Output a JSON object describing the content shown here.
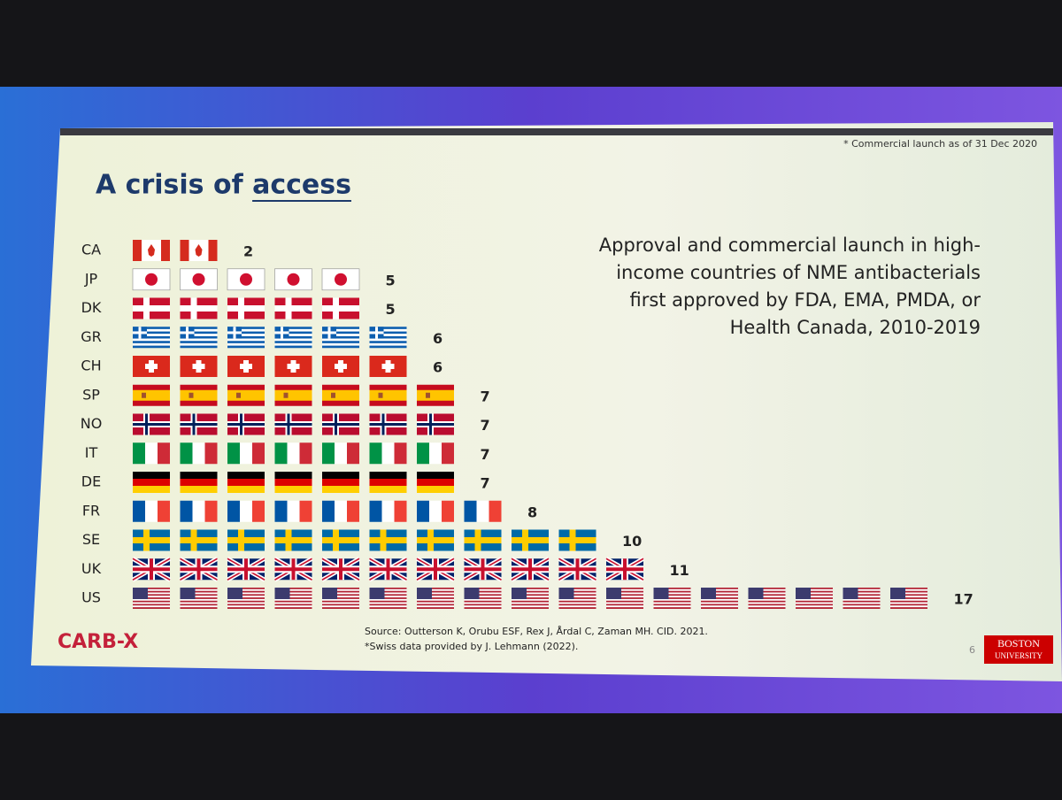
{
  "note": "* Commercial launch as of 31 Dec 2020",
  "chart_data": {
    "type": "pictograph",
    "title": "A crisis of access",
    "subtitle_lines": [
      "Approval and commercial launch in high-",
      "income countries of NME antibacterials",
      "first approved by FDA, EMA, PMDA, or",
      "Health Canada, 2010-2019"
    ],
    "categories": [
      "CA",
      "JP",
      "DK",
      "GR",
      "CH",
      "SP",
      "NO",
      "IT",
      "DE",
      "FR",
      "SE",
      "UK",
      "US"
    ],
    "values": [
      2,
      5,
      5,
      6,
      6,
      7,
      7,
      7,
      7,
      8,
      10,
      11,
      17
    ]
  },
  "source_lines": [
    "Source: Outterson K, Orubu ESF, Rex J, Årdal  C, Zaman MH. CID. 2021.",
    "*Swiss data provided by J. Lehmann (2022)."
  ],
  "logo": {
    "left": "CARB-X",
    "right_lines": [
      "BOSTON",
      "UNIVERSITY"
    ]
  },
  "page_number": "6"
}
